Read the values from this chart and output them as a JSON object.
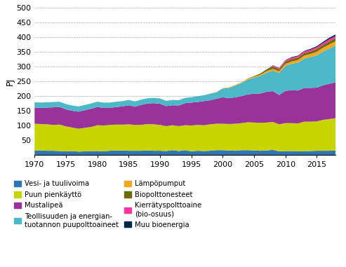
{
  "years": [
    1970,
    1971,
    1972,
    1973,
    1974,
    1975,
    1976,
    1977,
    1978,
    1979,
    1980,
    1981,
    1982,
    1983,
    1984,
    1985,
    1986,
    1987,
    1988,
    1989,
    1990,
    1991,
    1992,
    1993,
    1994,
    1995,
    1996,
    1997,
    1998,
    1999,
    2000,
    2001,
    2002,
    2003,
    2004,
    2005,
    2006,
    2007,
    2008,
    2009,
    2010,
    2011,
    2012,
    2013,
    2014,
    2015,
    2016,
    2017,
    2018
  ],
  "vesi_ja_tuuli": [
    14,
    15,
    14,
    14,
    13,
    12,
    13,
    11,
    12,
    13,
    13,
    12,
    14,
    15,
    15,
    14,
    14,
    14,
    15,
    14,
    14,
    13,
    16,
    13,
    16,
    12,
    14,
    13,
    14,
    16,
    16,
    15,
    14,
    16,
    16,
    15,
    14,
    15,
    17,
    12,
    13,
    13,
    12,
    13,
    13,
    14,
    14,
    14,
    15
  ],
  "puun_pienkaytto": [
    92,
    90,
    90,
    88,
    90,
    85,
    80,
    78,
    80,
    82,
    88,
    88,
    88,
    88,
    88,
    90,
    88,
    88,
    90,
    90,
    88,
    85,
    85,
    85,
    85,
    88,
    88,
    88,
    90,
    90,
    90,
    90,
    92,
    92,
    95,
    95,
    95,
    95,
    95,
    92,
    95,
    95,
    95,
    100,
    100,
    100,
    105,
    108,
    110
  ],
  "mustalipea": [
    55,
    55,
    57,
    60,
    60,
    58,
    57,
    58,
    60,
    62,
    62,
    60,
    58,
    60,
    62,
    65,
    62,
    68,
    70,
    72,
    72,
    68,
    68,
    70,
    75,
    78,
    78,
    82,
    82,
    85,
    90,
    88,
    90,
    92,
    95,
    98,
    100,
    105,
    105,
    100,
    110,
    112,
    112,
    115,
    115,
    115,
    118,
    120,
    122
  ],
  "teollisuus_puu": [
    18,
    18,
    18,
    18,
    18,
    18,
    18,
    18,
    18,
    18,
    18,
    18,
    18,
    18,
    18,
    18,
    18,
    18,
    18,
    18,
    18,
    18,
    18,
    18,
    18,
    18,
    20,
    20,
    22,
    22,
    30,
    35,
    40,
    45,
    50,
    55,
    60,
    65,
    70,
    75,
    85,
    90,
    95,
    100,
    105,
    110,
    115,
    120,
    125
  ],
  "lampopumput": [
    0,
    0,
    0,
    0,
    0,
    0,
    0,
    0,
    0,
    0,
    0,
    0,
    0,
    0,
    0,
    0,
    0,
    0,
    0,
    0,
    0,
    0,
    0,
    0,
    0,
    0,
    0,
    0,
    1,
    1,
    1,
    2,
    2,
    2,
    3,
    3,
    4,
    5,
    6,
    6,
    7,
    8,
    9,
    10,
    11,
    12,
    13,
    14,
    15
  ],
  "biopolttonesteet": [
    0,
    0,
    0,
    0,
    0,
    0,
    0,
    0,
    0,
    0,
    0,
    0,
    0,
    0,
    0,
    0,
    0,
    0,
    0,
    0,
    0,
    0,
    0,
    0,
    0,
    0,
    0,
    0,
    0,
    0,
    0,
    0,
    0,
    0,
    1,
    2,
    4,
    6,
    8,
    6,
    7,
    8,
    8,
    8,
    8,
    9,
    9,
    10,
    10
  ],
  "kierratys": [
    0,
    0,
    0,
    0,
    0,
    0,
    0,
    0,
    0,
    0,
    0,
    0,
    0,
    0,
    0,
    0,
    0,
    0,
    0,
    0,
    0,
    0,
    0,
    0,
    0,
    0,
    0,
    0,
    0,
    0,
    0,
    0,
    0,
    0,
    0,
    0,
    0,
    0,
    3,
    4,
    5,
    5,
    5,
    6,
    6,
    7,
    7,
    8,
    8
  ],
  "muu_bioenergia": [
    0,
    0,
    0,
    0,
    0,
    0,
    0,
    0,
    0,
    0,
    0,
    0,
    0,
    0,
    0,
    0,
    0,
    0,
    0,
    0,
    0,
    0,
    0,
    0,
    0,
    0,
    0,
    0,
    0,
    0,
    0,
    0,
    0,
    0,
    0,
    0,
    0,
    0,
    1,
    1,
    1,
    2,
    2,
    2,
    3,
    3,
    4,
    5,
    5
  ],
  "colors": {
    "vesi_ja_tuuli": "#2e75b6",
    "puun_pienkaytto": "#c8d400",
    "mustalipea": "#993399",
    "teollisuus_puu": "#4db8c8",
    "lampopumput": "#f5a623",
    "biopolttonesteet": "#6b6b00",
    "kierratys": "#ff3399",
    "muu_bioenergia": "#00264d"
  },
  "legend_labels": {
    "vesi_ja_tuuli": "Vesi- ja tuulivoima",
    "puun_pienkaytto": "Puun pienkäyttö",
    "mustalipea": "Mustalipeä",
    "teollisuus_puu": "Teollisuuden ja energian-\ntuotannon puupolttoaineet",
    "lampopumput": "Lämpöpumput",
    "biopolttonesteet": "Biopolttonesteet",
    "kierratys": "Kierrätyspolttoaine\n(bio-osuus)",
    "muu_bioenergia": "Muu bioenergia"
  },
  "ylabel": "PJ",
  "ylim": [
    0,
    500
  ],
  "yticks": [
    0,
    50,
    100,
    150,
    200,
    250,
    300,
    350,
    400,
    450,
    500
  ],
  "xlim": [
    1970,
    2018
  ],
  "xticks": [
    1970,
    1975,
    1980,
    1985,
    1990,
    1995,
    2000,
    2005,
    2010,
    2015
  ]
}
